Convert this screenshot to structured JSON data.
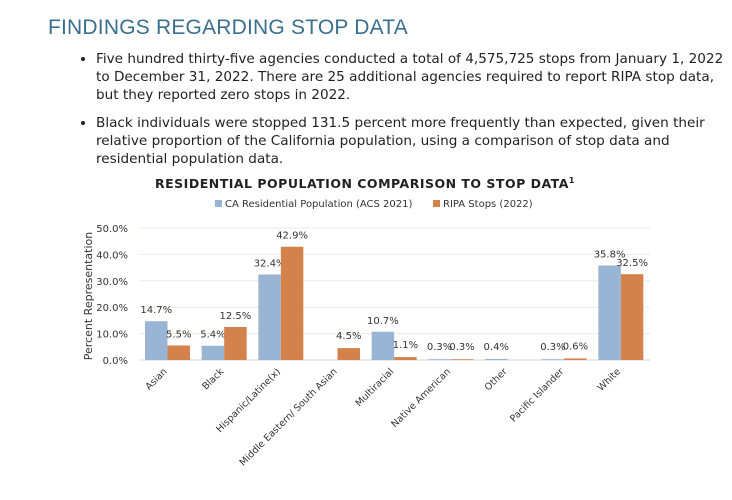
{
  "heading": "FINDINGS REGARDING STOP DATA",
  "bullets": [
    "Five hundred thirty-five agencies conducted a total of 4,575,725 stops from January 1, 2022 to December 31, 2022. There are 25 additional agencies required to report RIPA stop data, but they reported zero stops in 2022.",
    "Black individuals were stopped 131.5 percent more frequently than expected, given their relative proportion of the California population, using a comparison of stop data and residential population data."
  ],
  "chart_data": {
    "type": "bar",
    "title": "Residential Population Comparison to Stop Data",
    "title_footnote": "1",
    "ylabel": "Percent Representation",
    "ylim": [
      0,
      50
    ],
    "yticks": [
      "0.0%",
      "10.0%",
      "20.0%",
      "30.0%",
      "40.0%",
      "50.0%"
    ],
    "grid": true,
    "legend_placement": "top",
    "categories": [
      "Asian",
      "Black",
      "Hispanic/Latine(x)",
      "Middle Eastern/ South Asian",
      "Multiracial",
      "Native American",
      "Other",
      "Pacific Islander",
      "White"
    ],
    "series": [
      {
        "name": "CA Residential Population (ACS 2021)",
        "color": "#9ab5d3",
        "values": [
          14.7,
          5.4,
          32.4,
          null,
          10.7,
          0.3,
          0.4,
          0.3,
          35.8
        ],
        "labels": [
          "14.7%",
          "5.4%",
          "32.4%",
          null,
          "10.7%",
          "0.3%",
          "0.4%",
          "0.3%",
          "35.8%"
        ]
      },
      {
        "name": "RIPA Stops (2022)",
        "color": "#d4824c",
        "values": [
          5.5,
          12.5,
          42.9,
          4.5,
          1.1,
          0.3,
          null,
          0.6,
          32.5
        ],
        "labels": [
          "5.5%",
          "12.5%",
          "42.9%",
          "4.5%",
          "1.1%",
          "0.3%",
          null,
          "0.6%",
          "32.5%"
        ]
      }
    ]
  }
}
